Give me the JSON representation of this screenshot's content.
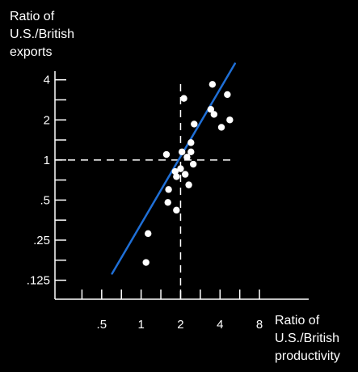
{
  "chart_data": {
    "type": "scatter",
    "title": "",
    "ylabel_lines": [
      "Ratio of",
      "U.S./British",
      "exports"
    ],
    "xlabel_lines": [
      "Ratio of",
      "U.S./British",
      "productivity"
    ],
    "x_scale": "log2",
    "y_scale": "log2",
    "xlim": [
      0.22,
      19
    ],
    "ylim": [
      0.09,
      6.5
    ],
    "x_ticks": [
      {
        "value": 0.5,
        "label": ".5"
      },
      {
        "value": 1,
        "label": "1"
      },
      {
        "value": 2,
        "label": "2"
      },
      {
        "value": 4,
        "label": "4"
      },
      {
        "value": 8,
        "label": "8"
      }
    ],
    "y_ticks": [
      {
        "value": 0.125,
        "label": ".125"
      },
      {
        "value": 0.25,
        "label": ".25"
      },
      {
        "value": 0.5,
        "label": ".5"
      },
      {
        "value": 1,
        "label": "1"
      },
      {
        "value": 2,
        "label": "2"
      },
      {
        "value": 4,
        "label": "4"
      }
    ],
    "reference_lines": {
      "x": 2,
      "y": 1
    },
    "fit_line": {
      "color": "#1f6fd6",
      "points": [
        {
          "x": 0.6,
          "y": 0.14
        },
        {
          "x": 5.2,
          "y": 5.3
        }
      ]
    },
    "point_color": "#ffffff",
    "axis_color": "#ffffff",
    "points": [
      {
        "x": 1.09,
        "y": 0.17
      },
      {
        "x": 1.13,
        "y": 0.28
      },
      {
        "x": 1.86,
        "y": 0.42
      },
      {
        "x": 1.6,
        "y": 0.48
      },
      {
        "x": 1.62,
        "y": 0.6
      },
      {
        "x": 1.56,
        "y": 1.1
      },
      {
        "x": 1.86,
        "y": 0.75
      },
      {
        "x": 1.82,
        "y": 0.82
      },
      {
        "x": 2.0,
        "y": 0.86
      },
      {
        "x": 2.17,
        "y": 0.78
      },
      {
        "x": 2.31,
        "y": 0.65
      },
      {
        "x": 2.05,
        "y": 1.15
      },
      {
        "x": 2.24,
        "y": 1.05
      },
      {
        "x": 2.5,
        "y": 0.93
      },
      {
        "x": 2.4,
        "y": 1.15
      },
      {
        "x": 2.4,
        "y": 1.35
      },
      {
        "x": 2.12,
        "y": 2.9
      },
      {
        "x": 2.54,
        "y": 1.86
      },
      {
        "x": 3.4,
        "y": 2.4
      },
      {
        "x": 3.6,
        "y": 2.2
      },
      {
        "x": 3.5,
        "y": 3.7
      },
      {
        "x": 4.1,
        "y": 1.76
      },
      {
        "x": 4.55,
        "y": 3.1
      },
      {
        "x": 4.75,
        "y": 2.0
      }
    ]
  }
}
